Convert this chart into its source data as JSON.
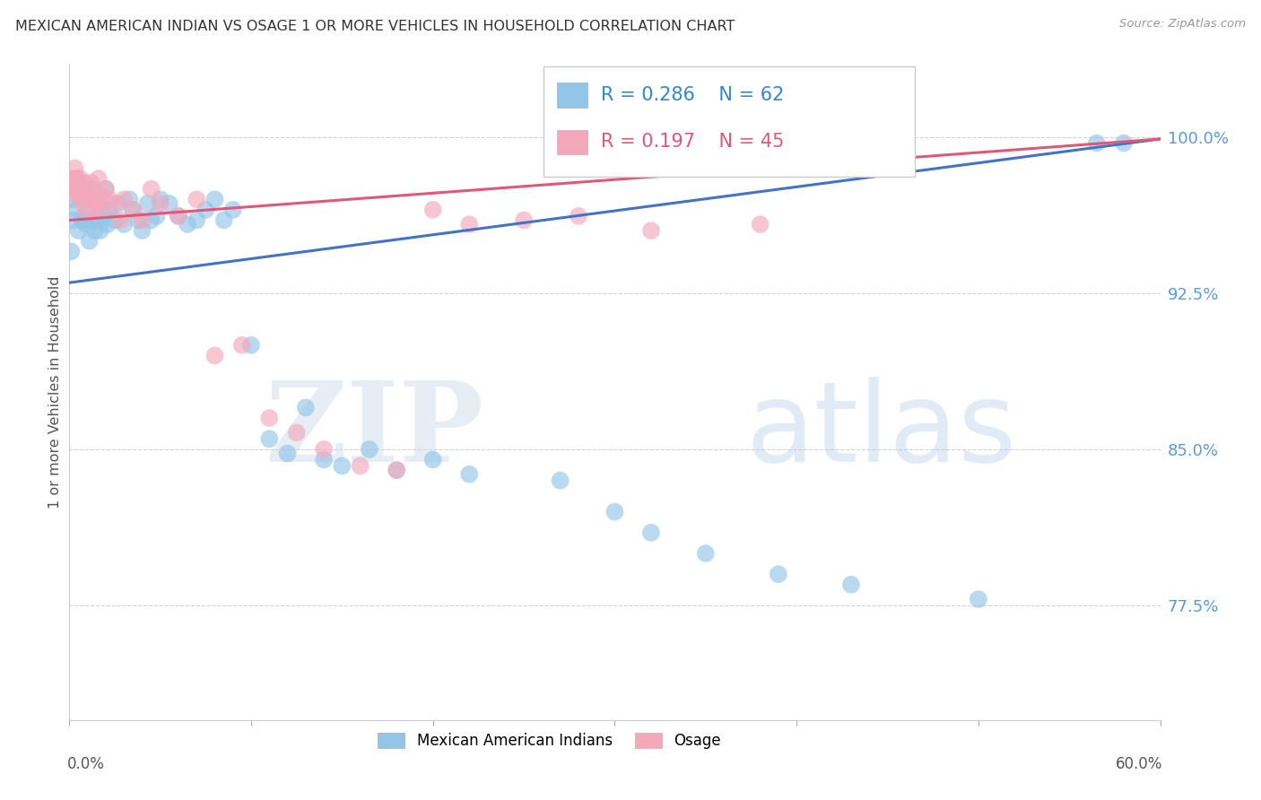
{
  "title": "MEXICAN AMERICAN INDIAN VS OSAGE 1 OR MORE VEHICLES IN HOUSEHOLD CORRELATION CHART",
  "source": "Source: ZipAtlas.com",
  "ylabel": "1 or more Vehicles in Household",
  "ytick_values": [
    0.775,
    0.85,
    0.925,
    1.0
  ],
  "ytick_labels": [
    "77.5%",
    "85.0%",
    "92.5%",
    "100.0%"
  ],
  "xmin": 0.0,
  "xmax": 0.6,
  "ymin": 0.72,
  "ymax": 1.035,
  "legend_blue_r": "0.286",
  "legend_blue_n": "62",
  "legend_pink_r": "0.197",
  "legend_pink_n": "45",
  "legend_blue_label": "Mexican American Indians",
  "legend_pink_label": "Osage",
  "blue_color": "#92C5E8",
  "pink_color": "#F4A8BC",
  "blue_line_color": "#4472C4",
  "pink_line_color": "#E05878",
  "watermark_zip": "ZIP",
  "watermark_atlas": "atlas",
  "blue_x": [
    0.001,
    0.002,
    0.002,
    0.003,
    0.004,
    0.004,
    0.005,
    0.006,
    0.007,
    0.008,
    0.009,
    0.01,
    0.011,
    0.012,
    0.013,
    0.014,
    0.015,
    0.016,
    0.017,
    0.018,
    0.019,
    0.02,
    0.021,
    0.022,
    0.025,
    0.027,
    0.03,
    0.033,
    0.035,
    0.038,
    0.04,
    0.043,
    0.045,
    0.048,
    0.05,
    0.055,
    0.06,
    0.065,
    0.07,
    0.075,
    0.08,
    0.085,
    0.09,
    0.1,
    0.11,
    0.12,
    0.13,
    0.14,
    0.15,
    0.165,
    0.18,
    0.2,
    0.22,
    0.27,
    0.3,
    0.32,
    0.35,
    0.39,
    0.43,
    0.5,
    0.565,
    0.58
  ],
  "blue_y": [
    0.945,
    0.97,
    0.96,
    0.975,
    0.965,
    0.98,
    0.955,
    0.97,
    0.96,
    0.975,
    0.958,
    0.965,
    0.95,
    0.96,
    0.975,
    0.955,
    0.968,
    0.96,
    0.955,
    0.97,
    0.962,
    0.975,
    0.958,
    0.965,
    0.96,
    0.968,
    0.958,
    0.97,
    0.965,
    0.96,
    0.955,
    0.968,
    0.96,
    0.962,
    0.97,
    0.968,
    0.962,
    0.958,
    0.96,
    0.965,
    0.97,
    0.96,
    0.965,
    0.9,
    0.855,
    0.848,
    0.87,
    0.845,
    0.842,
    0.85,
    0.84,
    0.845,
    0.838,
    0.835,
    0.82,
    0.81,
    0.8,
    0.79,
    0.785,
    0.778,
    0.997,
    0.997
  ],
  "pink_x": [
    0.001,
    0.002,
    0.003,
    0.003,
    0.004,
    0.004,
    0.005,
    0.006,
    0.006,
    0.007,
    0.008,
    0.009,
    0.01,
    0.011,
    0.012,
    0.013,
    0.014,
    0.015,
    0.016,
    0.017,
    0.018,
    0.02,
    0.022,
    0.025,
    0.028,
    0.03,
    0.035,
    0.04,
    0.045,
    0.05,
    0.06,
    0.07,
    0.08,
    0.095,
    0.11,
    0.125,
    0.14,
    0.16,
    0.18,
    0.2,
    0.22,
    0.25,
    0.28,
    0.32,
    0.38
  ],
  "pink_y": [
    0.98,
    0.975,
    0.985,
    0.978,
    0.972,
    0.98,
    0.975,
    0.97,
    0.98,
    0.972,
    0.978,
    0.965,
    0.975,
    0.97,
    0.978,
    0.965,
    0.972,
    0.968,
    0.98,
    0.972,
    0.965,
    0.975,
    0.97,
    0.968,
    0.96,
    0.97,
    0.965,
    0.96,
    0.975,
    0.968,
    0.962,
    0.97,
    0.895,
    0.9,
    0.865,
    0.858,
    0.85,
    0.842,
    0.84,
    0.965,
    0.958,
    0.96,
    0.962,
    0.955,
    0.958
  ]
}
